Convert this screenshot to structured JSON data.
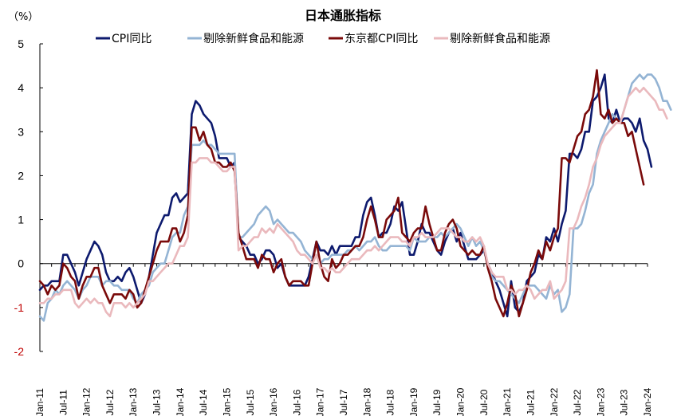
{
  "chart_data": {
    "type": "line",
    "title": "日本通胀指标",
    "unit_label": "（%）",
    "ylim": [
      -2,
      5
    ],
    "yticks": [
      -2,
      -1,
      0,
      1,
      2,
      3,
      4,
      5
    ],
    "x_start": "2011-01",
    "x_end": "2024-01",
    "xtick_labels": [
      "Jan-11",
      "Jul-11",
      "Jan-12",
      "Jul-12",
      "Jan-13",
      "Jul-13",
      "Jan-14",
      "Jul-14",
      "Jan-15",
      "Jul-15",
      "Jan-16",
      "Jul-16",
      "Jan-17",
      "Jul-17",
      "Jan-18",
      "Jul-18",
      "Jan-19",
      "Jul-19",
      "Jan-20",
      "Jul-20",
      "Jan-21",
      "Jul-21",
      "Jan-22",
      "Jul-22",
      "Jan-23",
      "Jul-23",
      "Jan-24"
    ],
    "grid": false,
    "legend_position": "top",
    "series": [
      {
        "name": "CPI同比",
        "color": "#0d1a6e",
        "width": 2.6,
        "values": [
          -0.6,
          -0.5,
          -0.5,
          -0.4,
          -0.4,
          -0.4,
          0.2,
          0.2,
          0.0,
          -0.2,
          -0.5,
          -0.2,
          0.1,
          0.3,
          0.5,
          0.4,
          0.2,
          -0.2,
          -0.4,
          -0.4,
          -0.3,
          -0.4,
          -0.2,
          -0.1,
          -0.3,
          -0.6,
          -0.9,
          -0.7,
          -0.3,
          0.2,
          0.7,
          0.9,
          1.1,
          1.1,
          1.5,
          1.6,
          1.4,
          1.5,
          1.6,
          3.4,
          3.7,
          3.6,
          3.4,
          3.3,
          3.2,
          2.9,
          2.4,
          2.4,
          2.4,
          2.2,
          2.3,
          0.6,
          0.5,
          0.4,
          0.2,
          0.2,
          0.0,
          0.1,
          0.3,
          0.3,
          0.2,
          -0.1,
          0.0,
          -0.3,
          -0.5,
          -0.5,
          -0.5,
          -0.5,
          -0.5,
          -0.3,
          0.1,
          0.5,
          0.3,
          0.3,
          0.2,
          0.4,
          0.2,
          0.4,
          0.4,
          0.4,
          0.4,
          0.6,
          0.6,
          1.1,
          1.4,
          1.5,
          1.1,
          0.6,
          0.7,
          0.7,
          0.9,
          1.3,
          1.2,
          1.4,
          0.8,
          0.2,
          0.2,
          0.5,
          0.9,
          0.7,
          0.7,
          0.5,
          0.3,
          0.2,
          0.5,
          0.7,
          0.8,
          0.5,
          0.7,
          0.4,
          0.1,
          0.1,
          0.1,
          0.2,
          0.3,
          -0.0,
          -0.2,
          -0.4,
          -0.6,
          -0.9,
          -1.2,
          -0.4,
          -1.0,
          -1.1,
          -0.9,
          -0.4,
          -0.3,
          -0.2,
          0.2,
          0.1,
          0.6,
          0.5,
          0.8,
          0.5,
          0.9,
          1.2,
          2.5,
          2.5,
          2.4,
          2.6,
          3.0,
          3.0,
          3.7,
          3.8,
          4.0,
          4.3,
          3.3,
          3.2,
          3.5,
          3.2,
          3.3,
          3.3,
          3.2,
          3.0,
          3.3,
          2.8,
          2.6,
          2.2
        ]
      },
      {
        "name": "剔除新鲜食品和能源",
        "color": "#94b4d4",
        "width": 2.6,
        "values": [
          -1.2,
          -1.3,
          -0.9,
          -0.8,
          -0.6,
          -0.7,
          -0.5,
          -0.4,
          -0.5,
          -0.6,
          -0.8,
          -0.6,
          -0.5,
          -0.3,
          -0.3,
          -0.3,
          -0.5,
          -0.4,
          -0.4,
          -0.5,
          -0.5,
          -0.6,
          -0.6,
          -0.6,
          -0.8,
          -0.9,
          -0.7,
          -0.6,
          -0.5,
          -0.2,
          -0.1,
          0.0,
          0.0,
          0.3,
          0.6,
          0.7,
          0.7,
          1.1,
          1.3,
          2.7,
          2.7,
          2.7,
          2.8,
          2.7,
          2.7,
          2.6,
          2.5,
          2.5,
          2.5,
          2.5,
          2.5,
          0.6,
          0.6,
          0.7,
          0.8,
          0.9,
          1.1,
          1.2,
          1.3,
          1.2,
          0.9,
          1.0,
          0.9,
          0.8,
          0.7,
          0.7,
          0.6,
          0.5,
          0.3,
          0.2,
          0.1,
          0.2,
          0.0,
          0.1,
          0.1,
          0.2,
          0.2,
          0.2,
          0.2,
          0.3,
          0.3,
          0.4,
          0.3,
          0.4,
          0.5,
          0.5,
          0.6,
          0.4,
          0.3,
          0.3,
          0.4,
          0.4,
          0.4,
          0.4,
          0.4,
          0.3,
          0.6,
          0.5,
          0.5,
          0.5,
          0.6,
          0.6,
          0.6,
          0.7,
          0.6,
          0.7,
          0.8,
          0.9,
          0.8,
          0.6,
          0.4,
          0.6,
          0.4,
          0.5,
          0.3,
          0.0,
          -0.3,
          -0.4,
          -0.4,
          -0.5,
          -0.6,
          -0.7,
          -0.8,
          -0.9,
          -0.7,
          -0.5,
          -0.5,
          -0.5,
          -0.6,
          -0.7,
          -0.8,
          -0.5,
          -0.7,
          -0.6,
          -1.1,
          -1.0,
          -0.7,
          0.8,
          0.8,
          0.9,
          1.2,
          1.6,
          1.8,
          2.5,
          2.8,
          3.0,
          3.2,
          3.4,
          3.3,
          3.2,
          3.5,
          3.8,
          4.1,
          4.2,
          4.3,
          4.2,
          4.3,
          4.3,
          4.2,
          4.0,
          3.7,
          3.7,
          3.5
        ]
      },
      {
        "name": "东京都CPI同比",
        "color": "#7a0a0a",
        "width": 2.6,
        "values": [
          -0.4,
          -0.5,
          -0.7,
          -0.5,
          -0.6,
          -0.5,
          0.0,
          -0.1,
          -0.3,
          -0.4,
          -0.8,
          -0.5,
          -0.3,
          -0.3,
          -0.1,
          -0.1,
          -0.5,
          -0.7,
          -0.9,
          -0.7,
          -0.7,
          -0.7,
          -0.8,
          -0.6,
          -0.7,
          -1.0,
          -0.9,
          -0.6,
          -0.3,
          0.0,
          0.3,
          0.5,
          0.5,
          0.5,
          0.8,
          0.8,
          0.5,
          0.7,
          1.1,
          3.1,
          3.1,
          2.8,
          3.0,
          2.7,
          2.6,
          2.3,
          2.3,
          2.2,
          2.2,
          2.3,
          2.1,
          0.7,
          0.4,
          0.1,
          0.1,
          0.1,
          -0.1,
          0.2,
          0.1,
          0.1,
          -0.2,
          0.0,
          0.1,
          -0.3,
          -0.5,
          -0.4,
          -0.4,
          -0.4,
          -0.5,
          -0.5,
          0.0,
          0.5,
          0.0,
          -0.3,
          -0.4,
          0.1,
          -0.1,
          0.0,
          0.2,
          0.2,
          0.3,
          0.4,
          0.4,
          0.6,
          1.0,
          1.3,
          1.0,
          0.6,
          0.6,
          1.0,
          1.1,
          1.2,
          1.5,
          0.7,
          0.6,
          0.5,
          0.7,
          0.8,
          0.8,
          1.3,
          0.9,
          0.6,
          0.3,
          0.3,
          0.7,
          0.9,
          1.0,
          0.8,
          0.4,
          0.3,
          0.2,
          0.3,
          0.2,
          0.2,
          0.4,
          -0.1,
          -0.4,
          -0.8,
          -1.0,
          -1.2,
          -0.9,
          -0.5,
          -0.7,
          -1.2,
          -0.9,
          -0.6,
          -0.2,
          0.0,
          0.3,
          0.1,
          0.5,
          0.3,
          0.6,
          0.8,
          2.4,
          2.4,
          2.3,
          2.6,
          2.9,
          3.0,
          3.4,
          3.5,
          3.8,
          4.4,
          3.4,
          3.3,
          3.5,
          3.2,
          3.3,
          3.2,
          3.2,
          2.9,
          3.0,
          2.6,
          2.2,
          1.8
        ]
      },
      {
        "name": "剔除新鲜食品和能源",
        "color": "#eab9bd",
        "width": 2.6,
        "values": [
          -0.9,
          -0.9,
          -0.8,
          -0.8,
          -0.7,
          -0.7,
          -0.6,
          -0.6,
          -0.6,
          -0.9,
          -1.0,
          -0.9,
          -0.8,
          -0.9,
          -0.8,
          -0.9,
          -0.9,
          -1.1,
          -1.2,
          -0.9,
          -0.9,
          -0.9,
          -1.0,
          -0.9,
          -1.0,
          -0.9,
          -0.8,
          -0.7,
          -0.4,
          -0.4,
          -0.3,
          -0.2,
          -0.1,
          0.0,
          0.0,
          0.2,
          0.4,
          0.4,
          0.6,
          2.3,
          2.3,
          2.4,
          2.4,
          2.4,
          2.3,
          2.3,
          2.2,
          2.1,
          2.1,
          2.2,
          2.2,
          0.3,
          0.4,
          0.4,
          0.5,
          0.6,
          0.6,
          0.8,
          0.7,
          0.8,
          0.7,
          0.9,
          0.8,
          0.7,
          0.6,
          0.5,
          0.3,
          0.2,
          0.2,
          0.1,
          0.0,
          0.2,
          -0.1,
          -0.1,
          -0.2,
          -0.1,
          -0.2,
          -0.2,
          -0.1,
          0.0,
          0.1,
          0.1,
          0.1,
          0.2,
          0.3,
          0.3,
          0.4,
          0.3,
          0.4,
          0.5,
          0.6,
          0.6,
          0.6,
          0.5,
          0.5,
          0.4,
          0.6,
          0.6,
          0.7,
          0.6,
          0.6,
          0.6,
          0.7,
          0.8,
          0.8,
          0.8,
          0.7,
          0.6,
          0.6,
          0.5,
          0.5,
          0.6,
          0.5,
          0.6,
          0.4,
          0.0,
          -0.2,
          -0.3,
          -0.3,
          -0.3,
          -0.6,
          -0.6,
          -0.7,
          -0.6,
          -0.6,
          -0.5,
          -0.6,
          -0.8,
          -0.7,
          -0.6,
          -0.6,
          -0.4,
          -0.8,
          -0.7,
          -0.6,
          -0.4,
          0.8,
          0.8,
          1.0,
          1.3,
          1.5,
          1.8,
          2.2,
          2.4,
          2.7,
          2.9,
          3.0,
          3.1,
          3.2,
          3.2,
          3.5,
          3.8,
          3.9,
          4.0,
          3.9,
          4.0,
          3.9,
          3.8,
          3.7,
          3.5,
          3.5,
          3.3
        ]
      }
    ]
  }
}
